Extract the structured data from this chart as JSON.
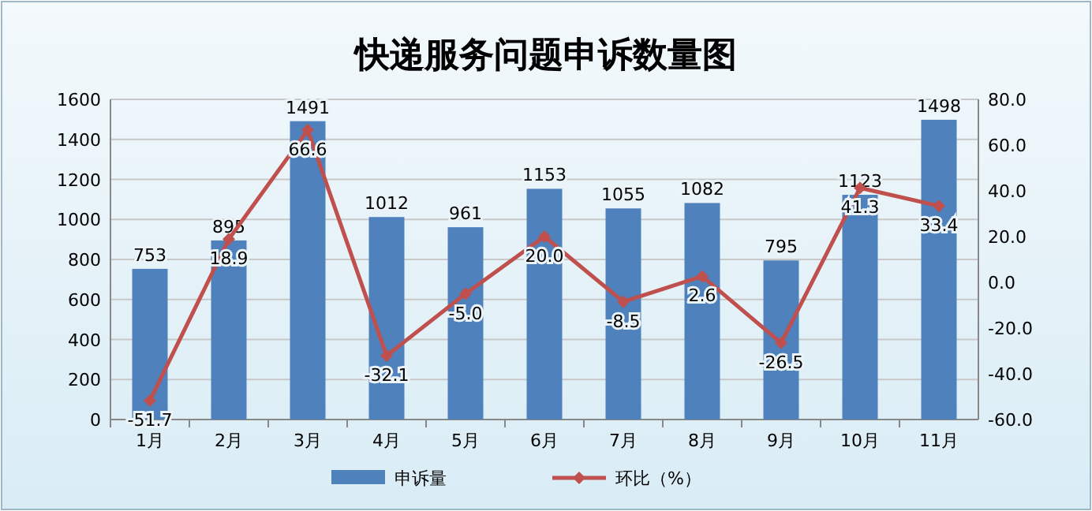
{
  "chart_data": {
    "type": "bar",
    "title": "快递服务问题申诉数量图",
    "categories": [
      "1月",
      "2月",
      "3月",
      "4月",
      "5月",
      "6月",
      "7月",
      "8月",
      "9月",
      "10月",
      "11月"
    ],
    "series": [
      {
        "name": "申诉量",
        "color": "#4f81bd",
        "values": [
          753,
          895,
          1491,
          1012,
          961,
          1153,
          1055,
          1082,
          795,
          1123,
          1498
        ],
        "value_labels": [
          "753",
          "895",
          "1491",
          "1012",
          "961",
          "1153",
          "1055",
          "1082",
          "795",
          "1123",
          "1498"
        ]
      },
      {
        "name": "环比（%）",
        "type": "line",
        "axis": "y2",
        "color": "#c0504d",
        "marker": "diamond",
        "values": [
          -51.7,
          18.9,
          66.6,
          -32.1,
          -5.0,
          20.0,
          -8.5,
          2.6,
          -26.5,
          41.3,
          33.4
        ],
        "value_labels": [
          "-51.7",
          "18.9",
          "66.6",
          "-32.1",
          "-5.0",
          "20.0",
          "-8.5",
          "2.6",
          "-26.5",
          "41.3",
          "33.4"
        ]
      }
    ],
    "ylim": [
      0,
      1600
    ],
    "yticks": [
      0,
      200,
      400,
      600,
      800,
      1000,
      1200,
      1400,
      1600
    ],
    "y2lim": [
      -60,
      80
    ],
    "y2ticks": [
      {
        "value": -60,
        "label": "-60.0"
      },
      {
        "value": -40,
        "label": "-40.0"
      },
      {
        "value": -20,
        "label": "-20.0"
      },
      {
        "value": 0,
        "label": "0.0"
      },
      {
        "value": 20,
        "label": "20.0"
      },
      {
        "value": 40,
        "label": "40.0"
      },
      {
        "value": 60,
        "label": "60.0"
      },
      {
        "value": 80,
        "label": "80.0"
      }
    ],
    "grid": "y",
    "legend": "bottom"
  }
}
